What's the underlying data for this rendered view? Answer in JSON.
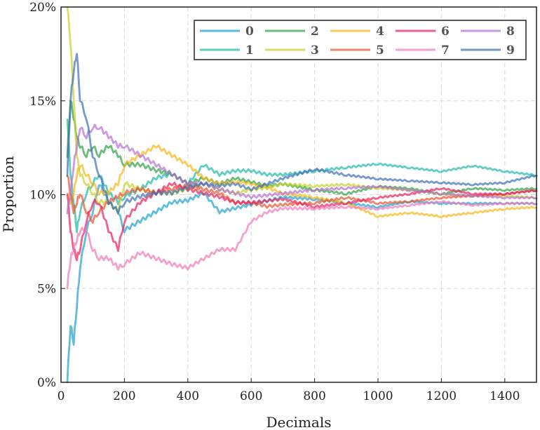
{
  "chart_data": {
    "type": "line",
    "title": "",
    "xlabel": "Decimals",
    "ylabel": "Proportion",
    "xlim": [
      0,
      1500
    ],
    "ylim": [
      0,
      20
    ],
    "xticks": [
      0,
      200,
      400,
      600,
      800,
      1000,
      1200,
      1400
    ],
    "xtick_labels": [
      "0",
      "200",
      "400",
      "600",
      "800",
      "1000",
      "1200",
      "1400"
    ],
    "yticks": [
      0,
      5,
      10,
      15,
      20
    ],
    "ytick_labels": [
      "0%",
      "5%",
      "10%",
      "15%",
      "20%"
    ],
    "grid": true,
    "legend_position": "top-right",
    "x": [
      20,
      30,
      40,
      50,
      60,
      80,
      100,
      120,
      150,
      180,
      200,
      250,
      300,
      350,
      400,
      450,
      500,
      550,
      600,
      650,
      700,
      800,
      900,
      1000,
      1100,
      1200,
      1300,
      1400,
      1500
    ],
    "series": [
      {
        "name": "0",
        "color": "#1f9fd0",
        "values": [
          0.0,
          3.0,
          2.0,
          4.0,
          6.0,
          8.0,
          9.0,
          10.5,
          9.5,
          9.0,
          8.0,
          8.5,
          9.0,
          9.5,
          9.6,
          10.0,
          9.0,
          9.2,
          9.4,
          9.6,
          9.8,
          9.7,
          9.5,
          9.3,
          9.6,
          9.5,
          9.5,
          9.5,
          9.5
        ]
      },
      {
        "name": "1",
        "color": "#1fb8a8",
        "values": [
          14.0,
          11.0,
          9.5,
          8.0,
          9.0,
          10.0,
          10.5,
          11.0,
          10.0,
          9.5,
          9.8,
          10.2,
          10.8,
          11.0,
          10.5,
          11.5,
          11.0,
          11.2,
          11.2,
          11.0,
          11.0,
          11.2,
          11.4,
          11.6,
          11.4,
          11.2,
          11.5,
          11.2,
          11.0
        ]
      },
      {
        "name": "2",
        "color": "#2ea044",
        "values": [
          12.0,
          15.0,
          14.0,
          13.0,
          12.5,
          12.0,
          12.5,
          12.0,
          12.5,
          12.0,
          11.5,
          11.5,
          11.2,
          11.0,
          10.5,
          10.8,
          10.5,
          10.8,
          10.6,
          10.4,
          10.5,
          10.2,
          10.0,
          10.4,
          10.3,
          10.0,
          10.3,
          10.2,
          10.3
        ]
      },
      {
        "name": "3",
        "color": "#c6d12a",
        "values": [
          20.0,
          18.0,
          15.0,
          12.0,
          11.0,
          10.5,
          10.0,
          9.5,
          9.5,
          9.0,
          10.5,
          10.2,
          10.0,
          10.0,
          10.2,
          10.5,
          10.2,
          10.0,
          10.2,
          10.3,
          10.5,
          10.4,
          10.5,
          10.3,
          10.2,
          10.0,
          9.9,
          9.9,
          9.8
        ]
      },
      {
        "name": "4",
        "color": "#f6b716",
        "values": [
          10.0,
          9.5,
          10.0,
          11.0,
          11.5,
          11.0,
          10.5,
          10.0,
          10.0,
          10.5,
          11.5,
          12.0,
          12.5,
          12.0,
          11.5,
          10.8,
          10.5,
          10.6,
          10.5,
          10.3,
          10.0,
          9.8,
          9.5,
          8.8,
          9.0,
          8.8,
          9.0,
          9.2,
          9.3
        ]
      },
      {
        "name": "5",
        "color": "#e8522e",
        "values": [
          11.0,
          10.0,
          9.0,
          9.5,
          10.0,
          9.0,
          8.5,
          9.0,
          9.5,
          9.8,
          10.0,
          10.2,
          10.0,
          10.2,
          10.4,
          10.2,
          10.0,
          9.5,
          9.5,
          9.3,
          9.4,
          9.5,
          9.8,
          9.5,
          9.6,
          9.8,
          9.9,
          10.0,
          10.2
        ]
      },
      {
        "name": "6",
        "color": "#e81f5a",
        "values": [
          10.0,
          8.0,
          7.0,
          6.5,
          7.0,
          8.5,
          9.5,
          9.5,
          8.0,
          7.0,
          8.5,
          9.5,
          10.0,
          10.5,
          10.2,
          10.0,
          9.8,
          9.5,
          9.5,
          9.6,
          9.7,
          9.3,
          9.5,
          9.8,
          10.0,
          10.3,
          10.0,
          10.0,
          10.2
        ]
      },
      {
        "name": "7",
        "color": "#f07ab8",
        "values": [
          5.0,
          6.5,
          7.0,
          7.5,
          8.0,
          8.0,
          7.0,
          6.5,
          6.5,
          6.0,
          6.2,
          6.8,
          6.5,
          6.2,
          6.0,
          6.5,
          7.0,
          7.0,
          8.5,
          9.0,
          9.2,
          9.2,
          9.3,
          9.2,
          9.4,
          9.6,
          9.4,
          9.5,
          9.5
        ]
      },
      {
        "name": "8",
        "color": "#b56fd1",
        "values": [
          9.0,
          10.0,
          11.5,
          12.5,
          13.5,
          13.0,
          13.5,
          13.5,
          13.0,
          12.5,
          12.5,
          12.0,
          11.5,
          11.0,
          10.5,
          10.5,
          10.2,
          10.0,
          9.8,
          9.9,
          10.0,
          10.2,
          10.3,
          10.4,
          10.2,
          10.0,
          9.9,
          9.8,
          9.8
        ]
      },
      {
        "name": "9",
        "color": "#3d6db5",
        "values": [
          11.0,
          15.0,
          16.5,
          17.5,
          15.0,
          14.0,
          12.0,
          11.0,
          9.5,
          9.0,
          9.5,
          9.8,
          10.0,
          10.0,
          10.3,
          10.5,
          10.4,
          10.5,
          10.2,
          10.5,
          10.8,
          11.3,
          11.0,
          10.8,
          10.7,
          10.6,
          10.5,
          10.6,
          11.0
        ]
      }
    ]
  }
}
